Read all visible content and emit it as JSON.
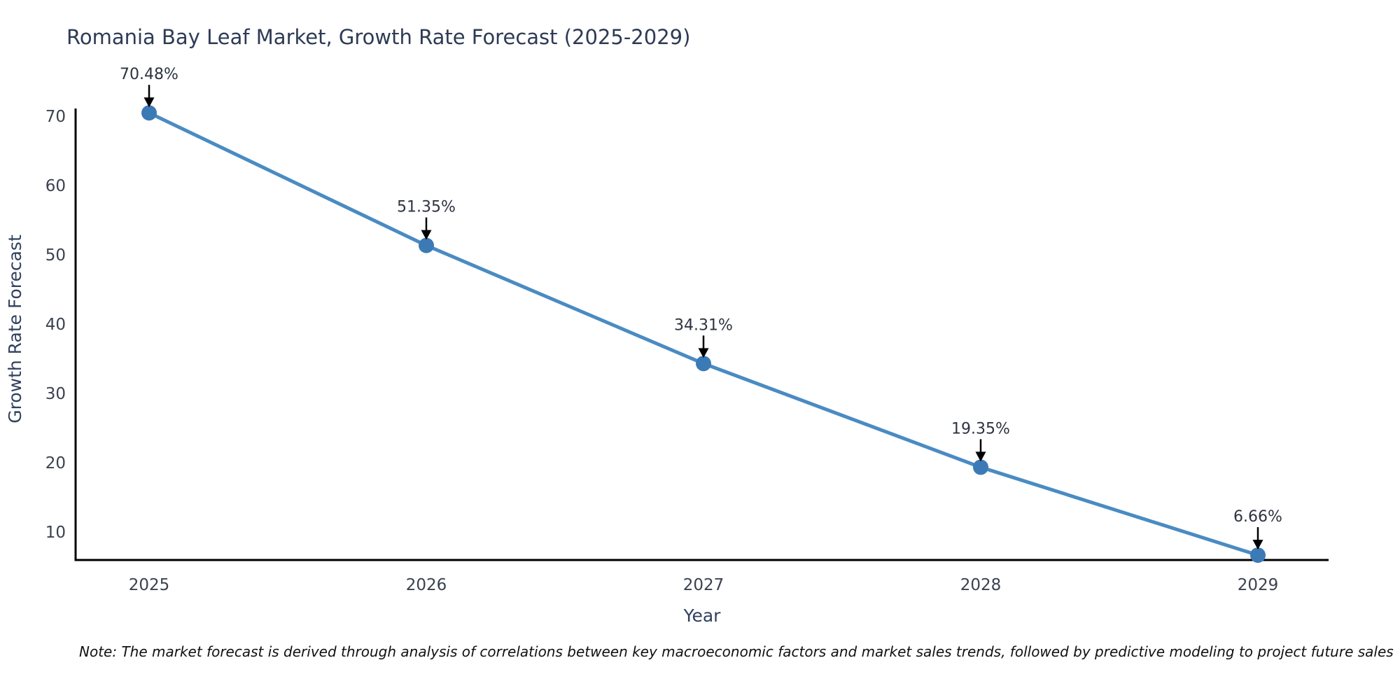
{
  "title": "Romania Bay Leaf Market, Growth Rate Forecast (2025-2029)",
  "note": "Note: The market forecast is derived through analysis of correlations between key macroeconomic factors and market sales trends, followed by predictive modeling to project future sales",
  "chart_data": {
    "type": "line",
    "title": "Romania Bay Leaf Market, Growth Rate Forecast (2025-2029)",
    "xlabel": "Year",
    "ylabel": "Growth Rate Forecast",
    "categories": [
      "2025",
      "2026",
      "2027",
      "2028",
      "2029"
    ],
    "values": [
      70.48,
      51.35,
      34.31,
      19.35,
      6.66
    ],
    "point_labels": [
      "70.48%",
      "51.35%",
      "34.31%",
      "19.35%",
      "6.66%"
    ],
    "y_ticks": [
      10,
      20,
      30,
      40,
      50,
      60,
      70
    ],
    "ylim": [
      6,
      71
    ],
    "grid": false,
    "legend": false,
    "annotation_style": "value label with black down-arrow above each data point",
    "colors": {
      "line": "#4a8bc2",
      "marker": "#3c7ab6",
      "axis": "#000000",
      "arrow": "#000000",
      "title_text": "#2e3b55",
      "tick_text": "#3a4250",
      "axis_label_text": "#31405f",
      "annotation_text": "#2d3340",
      "note_text": "#111111",
      "background": "#ffffff"
    }
  }
}
